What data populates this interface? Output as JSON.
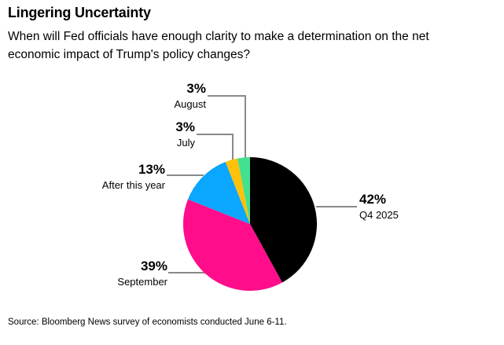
{
  "header": {
    "title": "Lingering Uncertainty",
    "subtitle_line1": "When will Fed officials have enough clarity to make a determination on the net",
    "subtitle_line2": "economic impact of Trump's policy changes?"
  },
  "chart_data": {
    "type": "pie",
    "start_angle": "top",
    "direction": "clockwise",
    "unit": "%",
    "slices": [
      {
        "label": "Q4 2025",
        "value": 42,
        "pct_label": "42%",
        "color": "#000000"
      },
      {
        "label": "September",
        "value": 39,
        "pct_label": "39%",
        "color": "#ff0d8a"
      },
      {
        "label": "After this year",
        "value": 13,
        "pct_label": "13%",
        "color": "#0ba6fd"
      },
      {
        "label": "July",
        "value": 3,
        "pct_label": "3%",
        "color": "#ffc10a"
      },
      {
        "label": "August",
        "value": 3,
        "pct_label": "3%",
        "color": "#42e08f"
      }
    ],
    "label_style": "callout-with-leader-lines",
    "leader_line_color": "#8a8a8a"
  },
  "footer": {
    "source": "Source: Bloomberg News survey of economists conducted June 6-11."
  }
}
